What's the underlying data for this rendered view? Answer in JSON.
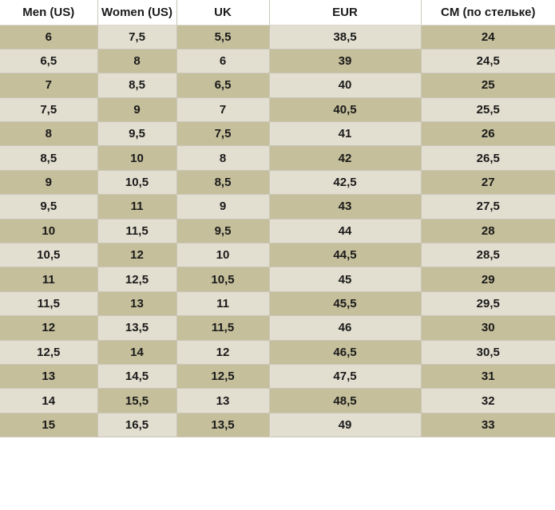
{
  "colors": {
    "dark_cell": "#c5bf9b",
    "light_cell": "#e3dfd0",
    "header_bg": "#ffffff"
  },
  "table": {
    "headers": [
      "Men (US)",
      "Women (US)",
      "UK",
      "EUR",
      "CM (по стельке)"
    ],
    "rows": [
      [
        "6",
        "7,5",
        "5,5",
        "38,5",
        "24"
      ],
      [
        "6,5",
        "8",
        "6",
        "39",
        "24,5"
      ],
      [
        "7",
        "8,5",
        "6,5",
        "40",
        "25"
      ],
      [
        "7,5",
        "9",
        "7",
        "40,5",
        "25,5"
      ],
      [
        "8",
        "9,5",
        "7,5",
        "41",
        "26"
      ],
      [
        "8,5",
        "10",
        "8",
        "42",
        "26,5"
      ],
      [
        "9",
        "10,5",
        "8,5",
        "42,5",
        "27"
      ],
      [
        "9,5",
        "11",
        "9",
        "43",
        "27,5"
      ],
      [
        "10",
        "11,5",
        "9,5",
        "44",
        "28"
      ],
      [
        "10,5",
        "12",
        "10",
        "44,5",
        "28,5"
      ],
      [
        "11",
        "12,5",
        "10,5",
        "45",
        "29"
      ],
      [
        "11,5",
        "13",
        "11",
        "45,5",
        "29,5"
      ],
      [
        "12",
        "13,5",
        "11,5",
        "46",
        "30"
      ],
      [
        "12,5",
        "14",
        "12",
        "46,5",
        "30,5"
      ],
      [
        "13",
        "14,5",
        "12,5",
        "47,5",
        "31"
      ],
      [
        "14",
        "15,5",
        "13",
        "48,5",
        "32"
      ],
      [
        "15",
        "16,5",
        "13,5",
        "49",
        "33"
      ]
    ]
  }
}
